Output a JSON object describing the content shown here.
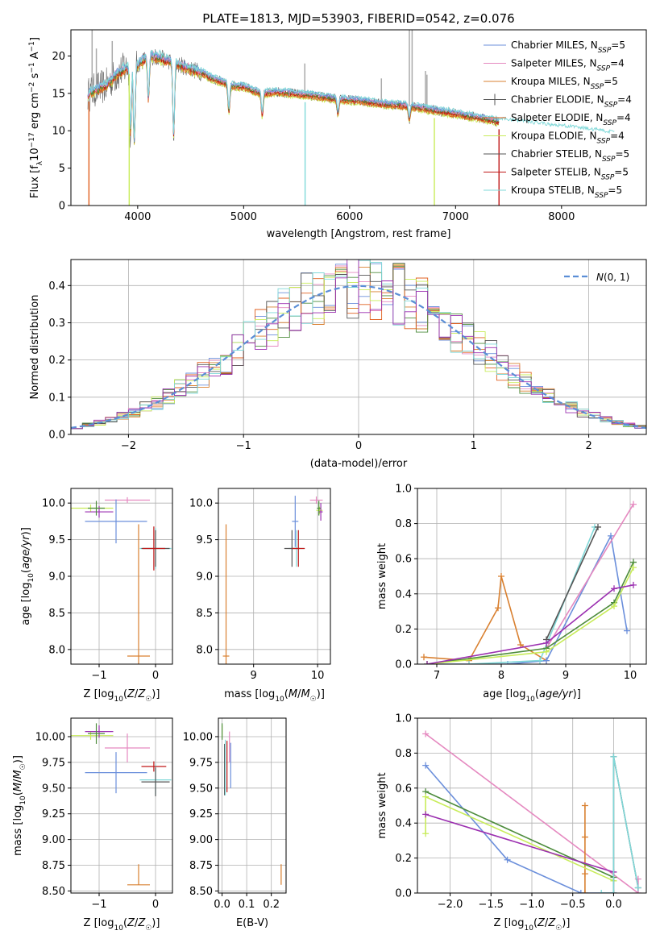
{
  "title": "PLATE=1813, MJD=53903, FIBERID=0542, z=0.076",
  "colors": {
    "Chabrier MILES": "#6b8fdb",
    "Salpeter MILES": "#e589c0",
    "Kroupa MILES": "#d98030",
    "Chabrier ELODIE": "#4d8c3c",
    "Salpeter ELODIE": "#e06020",
    "Kroupa ELODIE": "#c8ec5a",
    "Chabrier STELIB": "#555555",
    "Salpeter STELIB": "#c01818",
    "Kroupa STELIB": "#7fd8d8",
    "extra1": "#9b2fb0",
    "extra2": "#aaaaaa"
  },
  "chart_data": [
    {
      "id": "spectrum",
      "type": "line",
      "title": "PLATE=1813, MJD=53903, FIBERID=0542, z=0.076",
      "xlabel": "wavelength [Angstrom, rest frame]",
      "ylabel": "Flux [f_λ 10^-17 erg cm^-2 s^-1 A^-1]",
      "xlim": [
        3370,
        8800
      ],
      "ylim": [
        0,
        23.5
      ],
      "xticks": [
        4000,
        5000,
        6000,
        7000,
        8000
      ],
      "yticks": [
        0,
        5,
        10,
        15,
        20
      ],
      "legend_position": "top-right",
      "legend": [
        {
          "base": "Chabrier MILES, N",
          "sub": "SSP",
          "tail": "=5",
          "style": "line",
          "color": "Chabrier MILES"
        },
        {
          "base": "Salpeter MILES, N",
          "sub": "SSP",
          "tail": "=4",
          "style": "line",
          "color": "Salpeter MILES"
        },
        {
          "base": "Kroupa MILES, N",
          "sub": "SSP",
          "tail": "=5",
          "style": "line",
          "color": "Kroupa MILES"
        },
        {
          "base": "Chabrier ELODIE, N",
          "sub": "SSP",
          "tail": "=4",
          "style": "errorbar",
          "color": "Chabrier STELIB"
        },
        {
          "base": "Salpeter ELODIE, N",
          "sub": "SSP",
          "tail": "=4",
          "style": "line",
          "color": "Salpeter ELODIE"
        },
        {
          "base": "Kroupa ELODIE, N",
          "sub": "SSP",
          "tail": "=4",
          "style": "line",
          "color": "Kroupa ELODIE"
        },
        {
          "base": "Chabrier STELIB, N",
          "sub": "SSP",
          "tail": "=5",
          "style": "line",
          "color": "Chabrier STELIB"
        },
        {
          "base": "Salpeter STELIB, N",
          "sub": "SSP",
          "tail": "=5",
          "style": "line",
          "color": "Salpeter STELIB"
        },
        {
          "base": "Kroupa STELIB, N",
          "sub": "SSP",
          "tail": "=5",
          "style": "line",
          "color": "Kroupa STELIB"
        }
      ],
      "continuum": [
        [
          3530,
          14.8
        ],
        [
          3600,
          15.5
        ],
        [
          3700,
          16.0
        ],
        [
          3800,
          17.5
        ],
        [
          3900,
          18.5
        ],
        [
          4000,
          18.8
        ],
        [
          4100,
          20.0
        ],
        [
          4200,
          19.8
        ],
        [
          4300,
          19.3
        ],
        [
          4400,
          18.8
        ],
        [
          4500,
          18.3
        ],
        [
          4600,
          17.8
        ],
        [
          4700,
          17.0
        ],
        [
          4800,
          16.5
        ],
        [
          4860,
          16.2
        ],
        [
          4900,
          16.0
        ],
        [
          5000,
          15.9
        ],
        [
          5100,
          15.3
        ],
        [
          5200,
          15.0
        ],
        [
          5300,
          15.2
        ],
        [
          5400,
          15.1
        ],
        [
          5500,
          14.9
        ],
        [
          5600,
          14.8
        ],
        [
          5700,
          14.6
        ],
        [
          5800,
          14.4
        ],
        [
          5900,
          14.2
        ],
        [
          6000,
          14.1
        ],
        [
          6100,
          14.0
        ],
        [
          6200,
          13.8
        ],
        [
          6300,
          13.6
        ],
        [
          6400,
          13.5
        ],
        [
          6500,
          13.4
        ],
        [
          6600,
          13.2
        ],
        [
          6700,
          13.0
        ],
        [
          6800,
          12.7
        ],
        [
          6900,
          12.5
        ],
        [
          7000,
          12.3
        ],
        [
          7100,
          12.0
        ],
        [
          7200,
          11.8
        ],
        [
          7300,
          11.5
        ],
        [
          7410,
          11.2
        ],
        [
          7600,
          11.0
        ],
        [
          7800,
          10.6
        ],
        [
          8000,
          10.3
        ],
        [
          8200,
          10.0
        ],
        [
          8400,
          9.6
        ],
        [
          8500,
          9.4
        ]
      ],
      "absorption_lines": [
        [
          3933,
          9.5
        ],
        [
          3968,
          8.0
        ],
        [
          4101,
          14.0
        ],
        [
          4340,
          9.0
        ],
        [
          4861,
          12.5
        ],
        [
          5175,
          12.0
        ],
        [
          5890,
          12.2
        ],
        [
          6563,
          11.5
        ]
      ],
      "data_spikes": [
        [
          3570,
          23.5
        ],
        [
          3610,
          21.0
        ],
        [
          3760,
          22.0
        ],
        [
          3870,
          20.0
        ],
        [
          6564,
          23.5
        ],
        [
          6590,
          23.5
        ],
        [
          6716,
          18.0
        ],
        [
          6730,
          17.5
        ],
        [
          5577,
          19.0
        ],
        [
          6300,
          17.0
        ]
      ],
      "model_dropouts": [
        [
          3540,
          0
        ],
        [
          3920,
          0
        ],
        [
          5580,
          0
        ],
        [
          6800,
          0
        ],
        [
          7410,
          0
        ]
      ]
    },
    {
      "id": "residuals",
      "type": "line",
      "xlabel": "(data-model)/error",
      "ylabel": "Normed distribution",
      "xlim": [
        -2.5,
        2.5
      ],
      "ylim": [
        0,
        0.47
      ],
      "xticks": [
        -2,
        -1,
        0,
        1,
        2
      ],
      "yticks": [
        0.0,
        0.1,
        0.2,
        0.3,
        0.4
      ],
      "legend_position": "top-right",
      "legend_label": "N(0,1)",
      "gaussian": {
        "mean": 0,
        "sigma": 1
      }
    },
    {
      "id": "age-vs-Z",
      "type": "scatter",
      "xlabel": "Z [log10(Z/Z☉)]",
      "ylabel": "age  [log10(age/yr)]",
      "xlim": [
        -1.5,
        0.3
      ],
      "ylim": [
        7.8,
        10.2
      ],
      "xticks": [
        -1,
        0
      ],
      "yticks": [
        8.0,
        8.5,
        9.0,
        9.5,
        10.0
      ],
      "points": [
        {
          "x": -1.15,
          "y": 9.93,
          "xerr": 0.4,
          "yerr": 0.05,
          "color": "Kroupa ELODIE"
        },
        {
          "x": -1.0,
          "y": 9.88,
          "xerr": 0.25,
          "yerr": 0.08,
          "color": "extra1"
        },
        {
          "x": -1.05,
          "y": 9.93,
          "xerr": 0.15,
          "yerr": 0.1,
          "color": "Chabrier ELODIE"
        },
        {
          "x": -0.5,
          "y": 10.04,
          "xerr": 0.4,
          "yerr": 0.04,
          "color": "Salpeter MILES"
        },
        {
          "x": -0.7,
          "y": 9.75,
          "xerr": 0.55,
          "yerr": 0.3,
          "color": "Chabrier MILES"
        },
        {
          "x": 0.0,
          "y": 9.38,
          "xerr": 0.28,
          "yerr": 0.28,
          "color": "Kroupa STELIB"
        },
        {
          "x": 0.0,
          "y": 9.38,
          "xerr": 0.25,
          "yerr": 0.25,
          "color": "Chabrier STELIB"
        },
        {
          "x": -0.03,
          "y": 9.38,
          "xerr": 0.2,
          "yerr": 0.3,
          "color": "Salpeter STELIB"
        },
        {
          "x": -0.3,
          "y": 7.91,
          "xerr": 0.2,
          "yerr": 0.0,
          "color": "Kroupa MILES"
        },
        {
          "x": -0.3,
          "y": 7.91,
          "xerr": 0.0,
          "yerr": 1.8,
          "color": "Kroupa MILES"
        }
      ]
    },
    {
      "id": "age-vs-mass",
      "type": "scatter",
      "xlabel": "mass [log10(M/M☉)]",
      "ylabel": "",
      "xlim": [
        8.45,
        10.2
      ],
      "ylim": [
        7.8,
        10.2
      ],
      "xticks": [
        9,
        10
      ],
      "yticks": [
        8.0,
        8.5,
        9.0,
        9.5,
        10.0
      ],
      "points": [
        {
          "x": 9.67,
          "y": 9.38,
          "xerr": 0.12,
          "yerr": 0.25,
          "color": "Kroupa STELIB"
        },
        {
          "x": 9.6,
          "y": 9.38,
          "xerr": 0.12,
          "yerr": 0.25,
          "color": "Chabrier STELIB"
        },
        {
          "x": 9.7,
          "y": 9.38,
          "xerr": 0.1,
          "yerr": 0.25,
          "color": "Salpeter STELIB"
        },
        {
          "x": 9.65,
          "y": 9.75,
          "xerr": 0.05,
          "yerr": 0.35,
          "color": "Chabrier MILES"
        },
        {
          "x": 9.98,
          "y": 10.04,
          "xerr": 0.1,
          "yerr": 0.05,
          "color": "Salpeter MILES"
        },
        {
          "x": 10.03,
          "y": 9.9,
          "xerr": 0.05,
          "yerr": 0.05,
          "color": "Kroupa ELODIE"
        },
        {
          "x": 10.05,
          "y": 9.88,
          "xerr": 0.03,
          "yerr": 0.12,
          "color": "extra1"
        },
        {
          "x": 10.02,
          "y": 9.93,
          "xerr": 0.03,
          "yerr": 0.1,
          "color": "Chabrier ELODIE"
        },
        {
          "x": 8.57,
          "y": 7.91,
          "xerr": 0.05,
          "yerr": 0.0,
          "color": "Kroupa MILES"
        },
        {
          "x": 8.57,
          "y": 7.91,
          "xerr": 0.0,
          "yerr": 1.8,
          "color": "Kroupa MILES"
        }
      ]
    },
    {
      "id": "weight-vs-age",
      "type": "line",
      "xlabel": "age  [log10(age/yr)]",
      "ylabel": "mass weight",
      "xlim": [
        6.7,
        10.25
      ],
      "ylim": [
        0,
        1.0
      ],
      "xticks": [
        7,
        8,
        9,
        10
      ],
      "yticks": [
        0.0,
        0.2,
        0.4,
        0.6,
        0.8,
        1.0
      ],
      "series": [
        {
          "color": "Kroupa MILES",
          "x": [
            6.8,
            7.5,
            7.95,
            8.0,
            8.3,
            8.7
          ],
          "y": [
            0.04,
            0.02,
            0.32,
            0.5,
            0.11,
            0.02
          ]
        },
        {
          "color": "Chabrier MILES",
          "x": [
            6.85,
            8.1,
            8.7,
            9.7,
            9.95
          ],
          "y": [
            0.0,
            0.0,
            0.02,
            0.73,
            0.19
          ]
        },
        {
          "color": "Salpeter MILES",
          "x": [
            8.7,
            10.05
          ],
          "y": [
            0.09,
            0.91
          ]
        },
        {
          "color": "Kroupa STELIB",
          "x": [
            7.5,
            8.6,
            9.45
          ],
          "y": [
            0.0,
            0.02,
            0.78
          ]
        },
        {
          "color": "Chabrier STELIB",
          "x": [
            8.7,
            9.5
          ],
          "y": [
            0.14,
            0.78
          ]
        },
        {
          "color": "Chabrier ELODIE",
          "x": [
            6.85,
            8.7,
            9.75,
            10.05
          ],
          "y": [
            0.0,
            0.09,
            0.35,
            0.58
          ]
        },
        {
          "color": "Kroupa ELODIE",
          "x": [
            6.85,
            8.7,
            9.75,
            10.05
          ],
          "y": [
            0.0,
            0.07,
            0.33,
            0.55
          ]
        },
        {
          "color": "extra1",
          "x": [
            6.85,
            8.7,
            9.75,
            10.05
          ],
          "y": [
            0.0,
            0.12,
            0.43,
            0.45
          ]
        }
      ]
    },
    {
      "id": "mass-vs-Z",
      "type": "scatter",
      "xlabel": "Z [log10(Z/Z☉)]",
      "ylabel": "mass [log10(M/M☉)]",
      "xlim": [
        -1.5,
        0.3
      ],
      "ylim": [
        8.48,
        10.18
      ],
      "xticks": [
        -1,
        0
      ],
      "yticks": [
        8.5,
        8.75,
        9.0,
        9.25,
        9.5,
        9.75,
        10.0
      ],
      "points": [
        {
          "x": -1.15,
          "y": 10.01,
          "xerr": 0.4,
          "yerr": 0.04,
          "color": "Kroupa ELODIE"
        },
        {
          "x": -1.0,
          "y": 10.05,
          "xerr": 0.25,
          "yerr": 0.06,
          "color": "extra1"
        },
        {
          "x": -1.05,
          "y": 10.03,
          "xerr": 0.15,
          "yerr": 0.1,
          "color": "Chabrier ELODIE"
        },
        {
          "x": -0.5,
          "y": 9.89,
          "xerr": 0.4,
          "yerr": 0.14,
          "color": "Salpeter MILES"
        },
        {
          "x": -0.7,
          "y": 9.65,
          "xerr": 0.55,
          "yerr": 0.2,
          "color": "Chabrier MILES"
        },
        {
          "x": 0.0,
          "y": 9.58,
          "xerr": 0.28,
          "yerr": 0.15,
          "color": "Kroupa STELIB"
        },
        {
          "x": 0.0,
          "y": 9.56,
          "xerr": 0.25,
          "yerr": 0.14,
          "color": "Chabrier STELIB"
        },
        {
          "x": -0.03,
          "y": 9.71,
          "xerr": 0.22,
          "yerr": 0.05,
          "color": "Salpeter STELIB"
        },
        {
          "x": -0.3,
          "y": 8.56,
          "xerr": 0.2,
          "yerr": 0.0,
          "color": "Kroupa MILES"
        },
        {
          "x": -0.3,
          "y": 8.66,
          "xerr": 0.0,
          "yerr": 0.1,
          "color": "Kroupa MILES"
        }
      ]
    },
    {
      "id": "mass-vs-ebv",
      "type": "scatter",
      "xlabel": "E(B-V)",
      "ylabel": "",
      "xlim": [
        -0.015,
        0.26
      ],
      "ylim": [
        8.48,
        10.18
      ],
      "xticks": [
        0.0,
        0.1,
        0.2
      ],
      "yticks": [
        8.5,
        8.75,
        9.0,
        9.25,
        9.5,
        9.75,
        10.0
      ],
      "points": [
        {
          "x": 0.0,
          "y": 10.05,
          "xerr": 0.0,
          "yerr": 0.06,
          "color": "Kroupa ELODIE"
        },
        {
          "x": 0.0,
          "y": 10.05,
          "xerr": 0.0,
          "yerr": 0.08,
          "color": "Chabrier ELODIE"
        },
        {
          "x": 0.02,
          "y": 9.71,
          "xerr": 0.0,
          "yerr": 0.25,
          "color": "Salpeter STELIB"
        },
        {
          "x": 0.01,
          "y": 9.68,
          "xerr": 0.0,
          "yerr": 0.25,
          "color": "Chabrier STELIB"
        },
        {
          "x": 0.013,
          "y": 9.7,
          "xerr": 0.0,
          "yerr": 0.27,
          "color": "Kroupa STELIB"
        },
        {
          "x": 0.03,
          "y": 9.9,
          "xerr": 0.0,
          "yerr": 0.15,
          "color": "Salpeter MILES"
        },
        {
          "x": 0.035,
          "y": 9.72,
          "xerr": 0.0,
          "yerr": 0.22,
          "color": "Chabrier MILES"
        },
        {
          "x": 0.24,
          "y": 8.66,
          "xerr": 0.0,
          "yerr": 0.1,
          "color": "Kroupa MILES"
        }
      ]
    },
    {
      "id": "weight-vs-Z",
      "type": "line",
      "xlabel": "Z [log10(Z/Z☉)]",
      "ylabel": "mass weight",
      "xlim": [
        -2.4,
        0.4
      ],
      "ylim": [
        0,
        1.0
      ],
      "xticks": [
        -2.0,
        -1.5,
        -1.0,
        -0.5,
        0.0
      ],
      "yticks": [
        0.0,
        0.2,
        0.4,
        0.6,
        0.8,
        1.0
      ],
      "series": [
        {
          "color": "Salpeter MILES",
          "x": [
            -2.3,
            0.3,
            0.3
          ],
          "y": [
            0.91,
            0.0,
            0.08
          ]
        },
        {
          "color": "Chabrier MILES",
          "x": [
            -2.3,
            -1.3,
            -0.4,
            0.0
          ],
          "y": [
            0.73,
            0.19,
            0.0,
            0.0
          ]
        },
        {
          "color": "Kroupa MILES",
          "x": [
            -0.35,
            -0.35,
            -0.35,
            -0.35
          ],
          "y": [
            0.0,
            0.11,
            0.32,
            0.5
          ]
        },
        {
          "color": "Chabrier ELODIE",
          "x": [
            -2.3,
            0.0
          ],
          "y": [
            0.58,
            0.09
          ]
        },
        {
          "color": "Kroupa ELODIE",
          "x": [
            -2.3,
            -2.3,
            0.0
          ],
          "y": [
            0.34,
            0.55,
            0.07
          ]
        },
        {
          "color": "extra1",
          "x": [
            -2.3,
            0.0
          ],
          "y": [
            0.45,
            0.12
          ]
        },
        {
          "color": "Chabrier STELIB",
          "x": [
            0.0,
            0.0,
            0.3
          ],
          "y": [
            0.0,
            0.78,
            0.03
          ]
        },
        {
          "color": "Kroupa STELIB",
          "x": [
            -0.15,
            0.0,
            0.0,
            0.3
          ],
          "y": [
            0.0,
            0.0,
            0.78,
            0.03
          ]
        }
      ]
    }
  ]
}
